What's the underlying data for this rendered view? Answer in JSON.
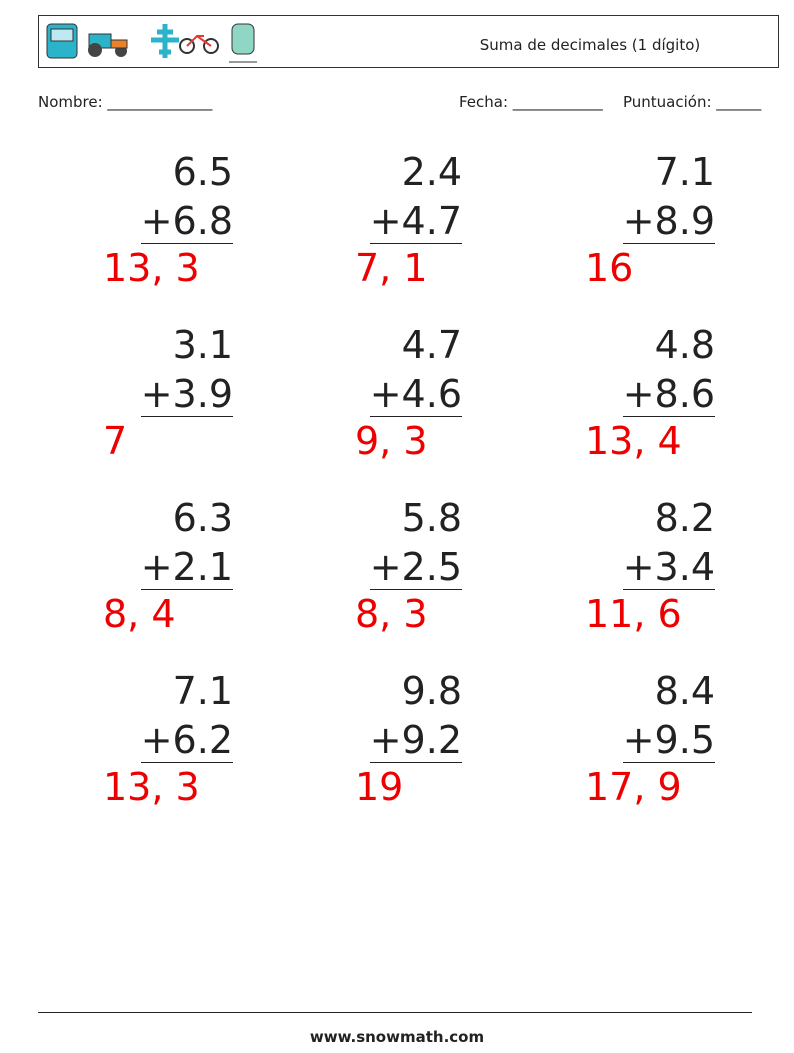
{
  "header": {
    "title": "Suma de decimales (1 dígito)"
  },
  "fields": {
    "name": "Nombre: ______________",
    "date": "Fecha: ____________",
    "score": "Puntuación: ______"
  },
  "problems": [
    {
      "a": "6.5",
      "b": "+6.8",
      "answer": "13, 3"
    },
    {
      "a": "2.4",
      "b": "+4.7",
      "answer": "7, 1"
    },
    {
      "a": "7.1",
      "b": "+8.9",
      "answer": "16"
    },
    {
      "a": "3.1",
      "b": "+3.9",
      "answer": "7"
    },
    {
      "a": "4.7",
      "b": "+4.6",
      "answer": "9, 3"
    },
    {
      "a": "4.8",
      "b": "+8.6",
      "answer": "13, 4"
    },
    {
      "a": "6.3",
      "b": "+2.1",
      "answer": "8, 4"
    },
    {
      "a": "5.8",
      "b": "+2.5",
      "answer": "8, 3"
    },
    {
      "a": "8.2",
      "b": "+3.4",
      "answer": "11, 6"
    },
    {
      "a": "7.1",
      "b": "+6.2",
      "answer": "13, 3"
    },
    {
      "a": "9.8",
      "b": "+9.2",
      "answer": "19"
    },
    {
      "a": "8.4",
      "b": "+9.5",
      "answer": "17, 9"
    }
  ],
  "footer": {
    "site": "www.snowmath.com"
  }
}
